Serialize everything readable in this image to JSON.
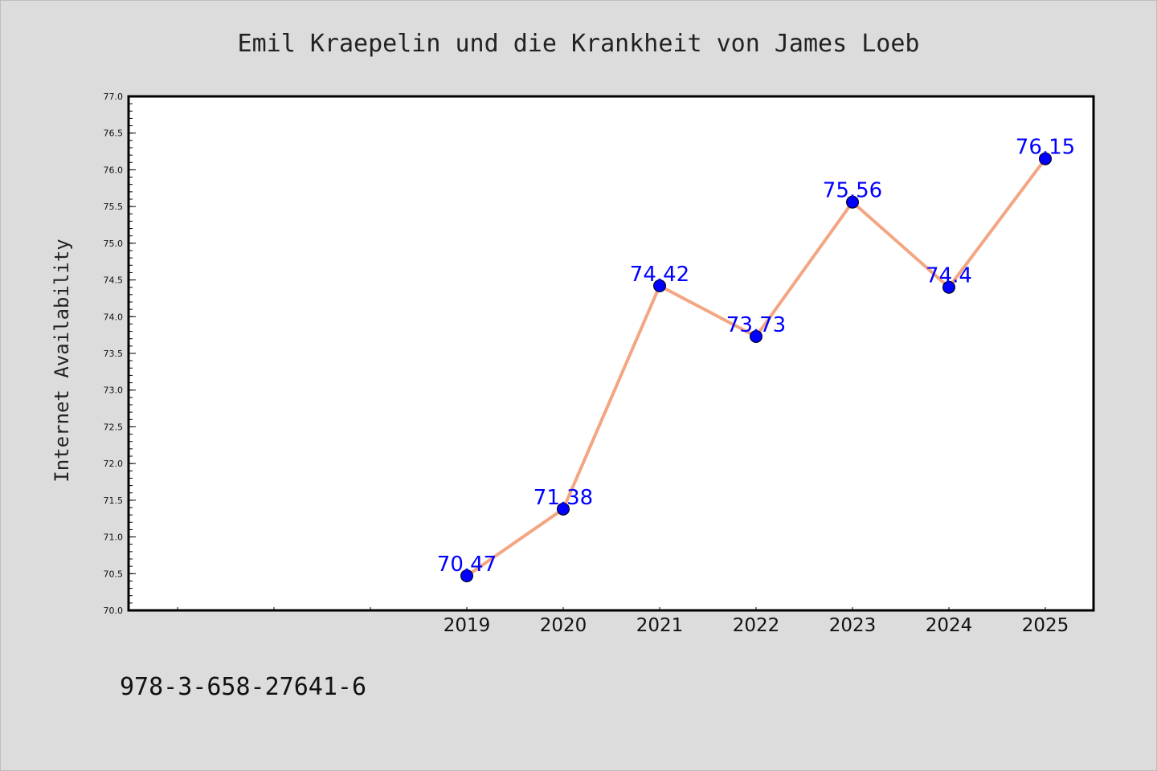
{
  "chart_data": {
    "type": "line",
    "title": "Emil Kraepelin und die Krankheit von James Loeb",
    "xlabel": "",
    "ylabel": "Internet Availability",
    "categories": [
      "2019",
      "2020",
      "2021",
      "2022",
      "2023",
      "2024",
      "2025"
    ],
    "series": [
      {
        "values": [
          70.47,
          71.38,
          74.42,
          73.73,
          75.56,
          74.4,
          76.15
        ]
      }
    ],
    "data_labels": [
      "70.47",
      "71.38",
      "74.42",
      "73.73",
      "75.56",
      "74.4",
      "76.15"
    ],
    "ylim": [
      70.0,
      77.0
    ],
    "yticks": [
      "70.0",
      "70.5",
      "71.0",
      "71.5",
      "72.0",
      "72.5",
      "73.0",
      "73.5",
      "74.0",
      "74.5",
      "75.0",
      "75.5",
      "76.0",
      "76.5",
      "77.0"
    ],
    "grid": false,
    "legend": "none",
    "line_color": "#f4a582",
    "marker_color": "#0000ff",
    "label_color": "#0000ff"
  },
  "footer": {
    "isbn": "978-3-658-27641-6"
  }
}
